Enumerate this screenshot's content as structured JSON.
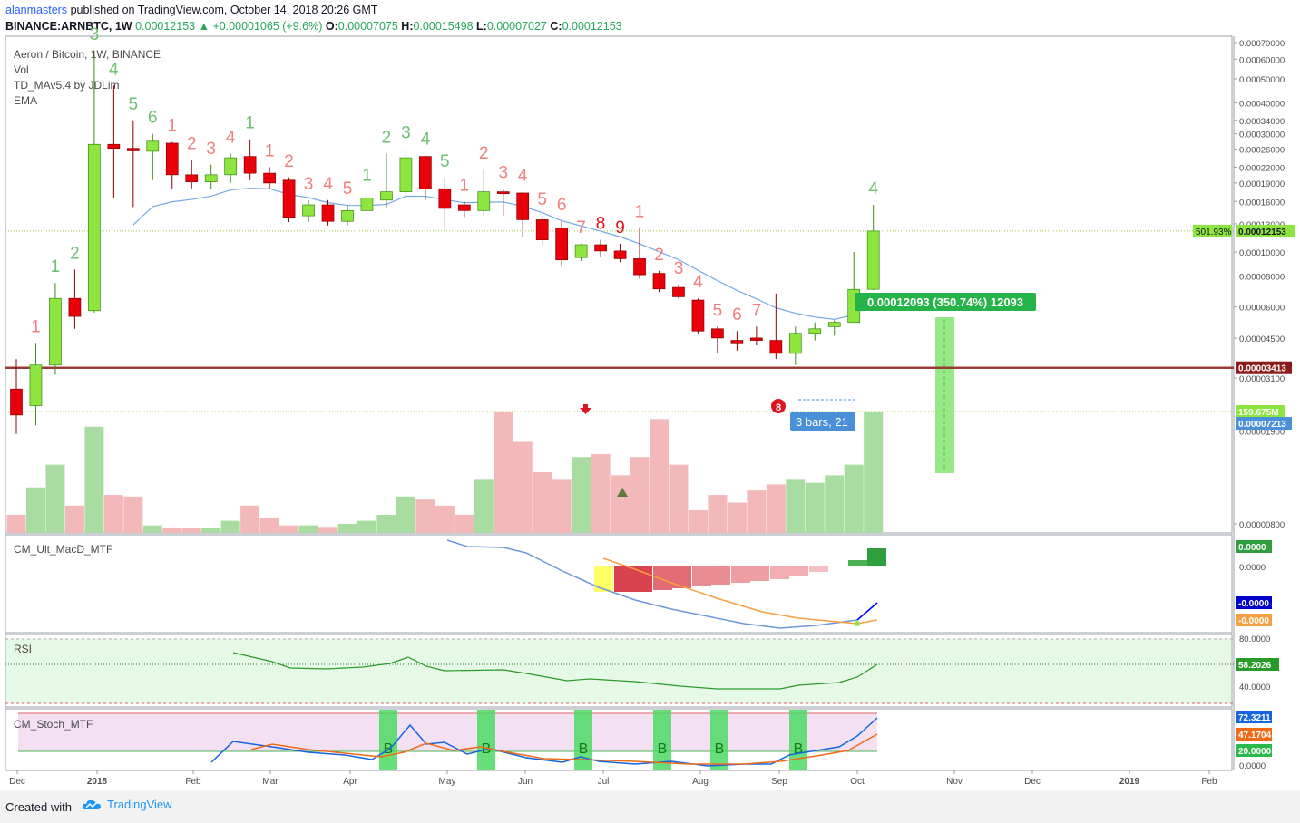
{
  "header": {
    "author": "alanmasters",
    "published_text": "published on TradingView.com, October 14, 2018 20:26 GMT",
    "symbol": "BINANCE:ARNBTC, 1W",
    "last": "0.00012153",
    "change": "+0.00001065 (+9.6%)",
    "O": "0.00007075",
    "H": "0.00015498",
    "L": "0.00007027",
    "C": "0.00012153"
  },
  "legend": {
    "title": "Aeron / Bitcoin, 1W, BINANCE",
    "vol": "Vol",
    "td": "TD_MAv5.4 by JDLim",
    "ema": "EMA",
    "macd": "CM_Ult_MacD_MTF",
    "rsi": "RSI",
    "stoch": "CM_Stoch_MTF"
  },
  "footer": {
    "created_with": "Created with",
    "brand": "TradingView"
  },
  "colors": {
    "up": "#8ee53f",
    "down": "#e8000b",
    "up_vol": "#a8dca0",
    "down_vol": "#f2b8ba",
    "ema": "#75a9e6",
    "support": "#9b3b36",
    "measure": "#2db84c"
  },
  "chart_data": [
    {
      "type": "candlestick",
      "title": "Aeron / Bitcoin, 1W, BINANCE",
      "scale": "log",
      "ylim": [
        7e-06,
        7e-05
      ],
      "y_ticks": [
        "0.00070000",
        "0.00060000",
        "0.00050000",
        "0.00040000",
        "0.00034000",
        "0.00030000",
        "0.00026000",
        "0.00022000",
        "0.00019000",
        "0.00016000",
        "0.00013000",
        "0.00010000",
        "0.00008000",
        "0.00006000",
        "0.00004500",
        "0.00003100",
        "0.00001900",
        "0.00000800"
      ],
      "x_ticks": [
        "Dec",
        "2018",
        "Feb",
        "Mar",
        "Apr",
        "May",
        "Jun",
        "Jul",
        "Aug",
        "Sep",
        "Oct",
        "Nov",
        "Dec",
        "2019",
        "Feb"
      ],
      "candles": [
        {
          "o": 2.8e-05,
          "h": 3.7e-05,
          "l": 1.85e-05,
          "c": 2.2e-05
        },
        {
          "o": 2.4e-05,
          "h": 4.3e-05,
          "l": 2e-05,
          "c": 3.5e-05
        },
        {
          "o": 3.5e-05,
          "h": 7.5e-05,
          "l": 3.2e-05,
          "c": 6.5e-05
        },
        {
          "o": 6.5e-05,
          "h": 8.5e-05,
          "l": 4.9e-05,
          "c": 5.5e-05
        },
        {
          "o": 5.8e-05,
          "h": 0.00065,
          "l": 5.7e-05,
          "c": 0.000272
        },
        {
          "o": 0.000272,
          "h": 0.00047,
          "l": 0.000165,
          "c": 0.000262
        },
        {
          "o": 0.000262,
          "h": 0.00034,
          "l": 0.000152,
          "c": 0.000256
        },
        {
          "o": 0.000255,
          "h": 0.0003,
          "l": 0.000195,
          "c": 0.00028
        },
        {
          "o": 0.000275,
          "h": 0.000278,
          "l": 0.00018,
          "c": 0.000205
        },
        {
          "o": 0.000205,
          "h": 0.000235,
          "l": 0.00018,
          "c": 0.000192
        },
        {
          "o": 0.000192,
          "h": 0.000225,
          "l": 0.00018,
          "c": 0.000205
        },
        {
          "o": 0.000205,
          "h": 0.00025,
          "l": 0.00019,
          "c": 0.00024
        },
        {
          "o": 0.000243,
          "h": 0.000285,
          "l": 0.000195,
          "c": 0.000208
        },
        {
          "o": 0.000208,
          "h": 0.00022,
          "l": 0.00018,
          "c": 0.00019
        },
        {
          "o": 0.000195,
          "h": 0.0002,
          "l": 0.000132,
          "c": 0.000138
        },
        {
          "o": 0.00014,
          "h": 0.000162,
          "l": 0.000132,
          "c": 0.000155
        },
        {
          "o": 0.000155,
          "h": 0.000162,
          "l": 0.000128,
          "c": 0.000133
        },
        {
          "o": 0.000133,
          "h": 0.000155,
          "l": 0.000128,
          "c": 0.000147
        },
        {
          "o": 0.000147,
          "h": 0.000175,
          "l": 0.000138,
          "c": 0.000165
        },
        {
          "o": 0.000162,
          "h": 0.00025,
          "l": 0.00015,
          "c": 0.000175
        },
        {
          "o": 0.000175,
          "h": 0.00026,
          "l": 0.000165,
          "c": 0.00024
        },
        {
          "o": 0.000243,
          "h": 0.000245,
          "l": 0.000162,
          "c": 0.00018
        },
        {
          "o": 0.00018,
          "h": 0.0002,
          "l": 0.000125,
          "c": 0.00015
        },
        {
          "o": 0.000155,
          "h": 0.00016,
          "l": 0.000138,
          "c": 0.000147
        },
        {
          "o": 0.000147,
          "h": 0.000215,
          "l": 0.00014,
          "c": 0.000175
        },
        {
          "o": 0.000175,
          "h": 0.00018,
          "l": 0.00014,
          "c": 0.000173
        },
        {
          "o": 0.000173,
          "h": 0.000175,
          "l": 0.000115,
          "c": 0.000135
        },
        {
          "o": 0.000135,
          "h": 0.00014,
          "l": 0.000107,
          "c": 0.000112
        },
        {
          "o": 0.000125,
          "h": 0.000133,
          "l": 8.8e-05,
          "c": 9.3e-05
        },
        {
          "o": 9.5e-05,
          "h": 0.000108,
          "l": 9.2e-05,
          "c": 0.000107
        },
        {
          "o": 0.000107,
          "h": 0.000112,
          "l": 9.6e-05,
          "c": 0.000101
        },
        {
          "o": 0.000101,
          "h": 0.000108,
          "l": 9.1e-05,
          "c": 9.4e-05
        },
        {
          "o": 9.4e-05,
          "h": 0.000125,
          "l": 7.8e-05,
          "c": 8.1e-05
        },
        {
          "o": 8.2e-05,
          "h": 8.4e-05,
          "l": 6.9e-05,
          "c": 7.1e-05
        },
        {
          "o": 7.2e-05,
          "h": 7.4e-05,
          "l": 6.5e-05,
          "c": 6.6e-05
        },
        {
          "o": 6.4e-05,
          "h": 6.5e-05,
          "l": 4.7e-05,
          "c": 4.8e-05
        },
        {
          "o": 4.9e-05,
          "h": 5e-05,
          "l": 3.9e-05,
          "c": 4.5e-05
        },
        {
          "o": 4.4e-05,
          "h": 4.8e-05,
          "l": 4e-05,
          "c": 4.3e-05
        },
        {
          "o": 4.5e-05,
          "h": 5e-05,
          "l": 4.2e-05,
          "c": 4.4e-05
        },
        {
          "o": 4.4e-05,
          "h": 6.8e-05,
          "l": 3.7e-05,
          "c": 3.9e-05
        },
        {
          "o": 3.9e-05,
          "h": 5e-05,
          "l": 3.5e-05,
          "c": 4.7e-05
        },
        {
          "o": 4.7e-05,
          "h": 5.2e-05,
          "l": 4.4e-05,
          "c": 4.9e-05
        },
        {
          "o": 5e-05,
          "h": 5.3e-05,
          "l": 4.6e-05,
          "c": 5.2e-05
        },
        {
          "o": 5.2e-05,
          "h": 0.0001,
          "l": 5.2e-05,
          "c": 7.07e-05
        },
        {
          "o": 7.075e-05,
          "h": 0.00015498,
          "l": 7.027e-05,
          "c": 0.00012153
        }
      ],
      "volume": [
        12,
        30,
        45,
        18,
        70,
        25,
        24,
        5,
        3,
        3,
        3,
        8,
        18,
        10,
        5,
        5,
        4,
        6,
        8,
        12,
        24,
        22,
        18,
        12,
        35,
        80,
        60,
        40,
        35,
        50,
        52,
        38,
        50,
        75,
        45,
        15,
        25,
        20,
        28,
        32,
        35,
        33,
        38,
        45,
        80
      ],
      "td_counts": [
        {
          "i": 1,
          "t": "1",
          "c": "#f08080"
        },
        {
          "i": 2,
          "t": "1",
          "c": "#6fbf73"
        },
        {
          "i": 3,
          "t": "2",
          "c": "#6fbf73"
        },
        {
          "i": 4,
          "t": "3",
          "c": "#6fbf73"
        },
        {
          "i": 5,
          "t": "4",
          "c": "#6fbf73"
        },
        {
          "i": 6,
          "t": "5",
          "c": "#6fbf73"
        },
        {
          "i": 7,
          "t": "6",
          "c": "#6fbf73"
        },
        {
          "i": 8,
          "t": "1",
          "c": "#f08080"
        },
        {
          "i": 9,
          "t": "2",
          "c": "#f08080"
        },
        {
          "i": 10,
          "t": "3",
          "c": "#f08080"
        },
        {
          "i": 11,
          "t": "4",
          "c": "#f08080"
        },
        {
          "i": 12,
          "t": "1",
          "c": "#6fbf73"
        },
        {
          "i": 13,
          "t": "1",
          "c": "#f08080"
        },
        {
          "i": 14,
          "t": "2",
          "c": "#f08080"
        },
        {
          "i": 15,
          "t": "3",
          "c": "#f08080"
        },
        {
          "i": 16,
          "t": "4",
          "c": "#f08080"
        },
        {
          "i": 17,
          "t": "5",
          "c": "#f08080"
        },
        {
          "i": 18,
          "t": "1",
          "c": "#6fbf73"
        },
        {
          "i": 19,
          "t": "2",
          "c": "#6fbf73"
        },
        {
          "i": 20,
          "t": "3",
          "c": "#6fbf73"
        },
        {
          "i": 21,
          "t": "4",
          "c": "#6fbf73"
        },
        {
          "i": 22,
          "t": "5",
          "c": "#6fbf73"
        },
        {
          "i": 23,
          "t": "1",
          "c": "#f08080"
        },
        {
          "i": 24,
          "t": "2",
          "c": "#f08080"
        },
        {
          "i": 25,
          "t": "3",
          "c": "#f08080"
        },
        {
          "i": 26,
          "t": "4",
          "c": "#f08080"
        },
        {
          "i": 27,
          "t": "5",
          "c": "#f08080"
        },
        {
          "i": 28,
          "t": "6",
          "c": "#f08080"
        },
        {
          "i": 29,
          "t": "7",
          "c": "#f08080"
        },
        {
          "i": 30,
          "t": "8",
          "c": "#e0141e"
        },
        {
          "i": 31,
          "t": "9",
          "c": "#e0141e"
        },
        {
          "i": 32,
          "t": "1",
          "c": "#f08080"
        },
        {
          "i": 33,
          "t": "2",
          "c": "#f08080"
        },
        {
          "i": 34,
          "t": "3",
          "c": "#f08080"
        },
        {
          "i": 35,
          "t": "4",
          "c": "#f08080"
        },
        {
          "i": 36,
          "t": "5",
          "c": "#f08080"
        },
        {
          "i": 37,
          "t": "6",
          "c": "#f08080"
        },
        {
          "i": 38,
          "t": "7",
          "c": "#f08080"
        },
        {
          "i": 44,
          "t": "4",
          "c": "#6fbf73"
        }
      ],
      "price_labels": [
        {
          "text": "501.93%",
          "value": "0.00012153",
          "color": "#8ee53f"
        },
        {
          "text": "159.675M",
          "color": "#8ee53f"
        },
        {
          "text": "0.00007213",
          "color": "#4a90d9"
        },
        {
          "text": "0.00003413",
          "color": "#8b1a1a"
        }
      ],
      "measure": {
        "label": "0.00012093 (350.74%) 12093",
        "bars_label": "3 bars, 21"
      },
      "support": 3.413e-05
    },
    {
      "type": "bar",
      "title": "CM_Ult_MacD_MTF",
      "labels": [
        "0.0000",
        "0.0000",
        "-0.0000",
        "-0.0000"
      ]
    },
    {
      "type": "line",
      "title": "RSI",
      "value": "58.2026",
      "y_ticks": [
        "80.0000",
        "40.0000"
      ]
    },
    {
      "type": "line",
      "title": "CM_Stoch_MTF",
      "values": [
        "72.3211",
        "47.1704",
        "20.0000"
      ],
      "y_ticks": [
        "0.0000"
      ],
      "buy_label": "B"
    }
  ]
}
